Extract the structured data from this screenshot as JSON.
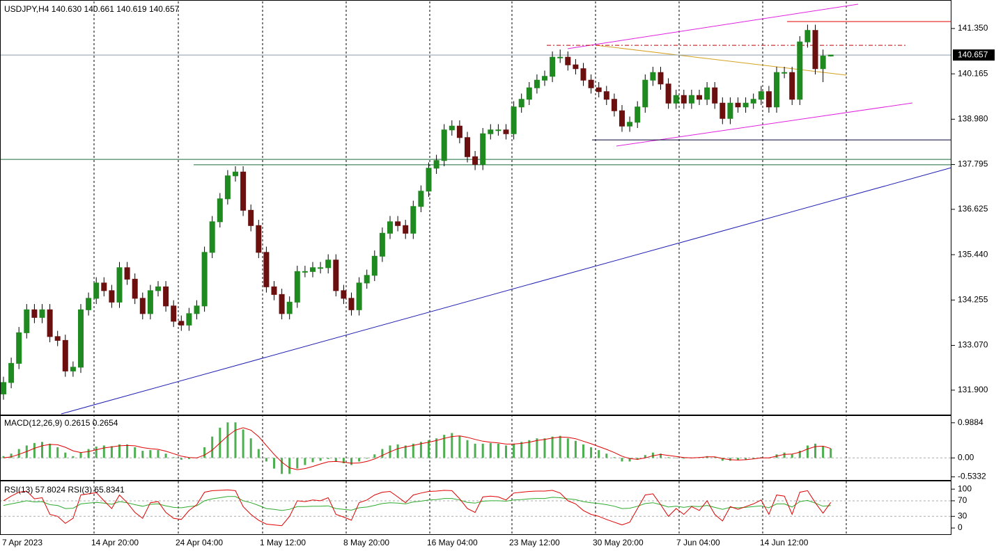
{
  "chart_data": [
    {
      "type": "candlestick",
      "title": "USDJPY,H4  140.630 140.661 140.619 140.657",
      "up_color": "#1f8a1f",
      "down_color": "#6b0f0f",
      "wick_color": "#000000",
      "ylim": [
        131.28,
        142.04
      ],
      "yticks": [
        {
          "value": 131.9,
          "label": "131.900"
        },
        {
          "value": 133.07,
          "label": "133.070"
        },
        {
          "value": 134.255,
          "label": "134.255"
        },
        {
          "value": 135.44,
          "label": "135.440"
        },
        {
          "value": 136.625,
          "label": "136.625"
        },
        {
          "value": 137.795,
          "label": "137.795"
        },
        {
          "value": 138.98,
          "label": "138.980"
        },
        {
          "value": 140.165,
          "label": "140.165"
        },
        {
          "value": 141.35,
          "label": "141.350"
        }
      ],
      "current": {
        "value": 140.657,
        "label": "140.657"
      },
      "levels": [
        {
          "value": 141.53,
          "color": "#e00000",
          "style": "solid"
        },
        {
          "value": 140.91,
          "color": "#c00000",
          "style": "dashdot"
        },
        {
          "value": 138.44,
          "color": "#000033",
          "style": "solid"
        },
        {
          "value": 137.93,
          "color": "#1a6b3a",
          "style": "solid"
        },
        {
          "value": 137.79,
          "color": "#1a6b3a",
          "style": "solid"
        }
      ],
      "open": [
        131.8,
        132.1,
        132.6,
        133.4,
        134.0,
        133.8,
        134.0,
        133.3,
        133.2,
        132.4,
        132.5,
        134.0,
        134.3,
        134.7,
        134.5,
        134.2,
        135.1,
        134.8,
        134.3,
        133.9,
        134.5,
        134.6,
        134.1,
        133.7,
        133.6,
        133.9,
        134.1,
        135.5,
        136.3,
        136.9,
        137.5,
        137.6,
        136.6,
        136.2,
        135.5,
        134.6,
        134.4,
        133.9,
        134.2,
        135.0,
        135.0,
        135.1,
        135.1,
        135.3,
        134.5,
        134.3,
        134.0,
        134.7,
        134.9,
        135.4,
        136.0,
        136.3,
        136.2,
        136.0,
        136.7,
        137.1,
        137.7,
        137.9,
        138.7,
        138.8,
        138.5,
        138.0,
        137.8,
        138.6,
        138.7,
        138.7,
        138.6,
        139.3,
        139.5,
        139.8,
        140.0,
        140.1,
        140.6,
        140.6,
        140.4,
        140.3,
        140.0,
        139.8,
        139.7,
        139.5,
        139.2,
        138.8,
        138.9,
        139.3,
        140.0,
        140.2,
        139.9,
        139.4,
        139.6,
        139.4,
        139.6,
        139.5,
        139.8,
        139.4,
        139.0,
        139.4,
        139.3,
        139.4,
        139.5,
        139.7,
        139.3,
        140.2,
        140.2,
        139.5,
        141.0,
        141.3,
        140.3,
        140.63
      ],
      "high": [
        132.25,
        132.75,
        133.55,
        134.15,
        134.15,
        134.15,
        134.15,
        133.45,
        133.35,
        132.65,
        134.15,
        134.45,
        134.85,
        134.85,
        134.65,
        135.25,
        135.25,
        134.95,
        134.45,
        134.65,
        134.75,
        134.75,
        134.25,
        133.85,
        134.05,
        134.25,
        135.65,
        136.45,
        137.05,
        137.65,
        137.75,
        137.75,
        136.75,
        136.35,
        135.65,
        134.75,
        134.55,
        134.35,
        135.15,
        135.15,
        135.25,
        135.25,
        135.45,
        135.45,
        134.65,
        134.45,
        134.85,
        135.05,
        135.55,
        136.15,
        136.45,
        136.45,
        136.35,
        136.85,
        137.25,
        137.85,
        138.05,
        138.85,
        138.95,
        138.95,
        138.65,
        138.15,
        138.75,
        138.85,
        138.85,
        138.85,
        139.45,
        139.65,
        139.95,
        140.15,
        140.25,
        140.75,
        140.8,
        140.75,
        140.55,
        140.45,
        140.15,
        139.95,
        139.85,
        139.65,
        139.35,
        139.05,
        139.45,
        140.15,
        140.35,
        140.35,
        140.05,
        139.75,
        139.75,
        139.75,
        139.75,
        139.95,
        139.95,
        139.55,
        139.55,
        139.55,
        139.55,
        139.65,
        139.85,
        139.85,
        140.35,
        140.35,
        140.35,
        141.15,
        141.45,
        141.45,
        140.8,
        140.661
      ],
      "low": [
        131.65,
        131.95,
        132.45,
        133.25,
        133.65,
        133.65,
        133.15,
        133.05,
        132.25,
        132.25,
        132.35,
        133.85,
        134.15,
        134.35,
        134.05,
        134.05,
        134.65,
        134.15,
        133.75,
        133.75,
        134.35,
        133.95,
        133.55,
        133.45,
        133.45,
        133.75,
        133.95,
        135.35,
        136.15,
        136.75,
        137.35,
        136.45,
        136.05,
        135.35,
        134.45,
        134.25,
        133.75,
        133.75,
        134.05,
        134.85,
        134.85,
        134.95,
        134.95,
        134.35,
        134.15,
        133.85,
        133.85,
        134.55,
        134.75,
        135.25,
        135.85,
        136.05,
        135.85,
        135.85,
        136.55,
        136.95,
        137.55,
        137.75,
        138.55,
        138.35,
        137.85,
        137.65,
        137.65,
        138.45,
        138.55,
        138.45,
        138.45,
        139.15,
        139.35,
        139.65,
        139.85,
        139.95,
        140.45,
        140.25,
        140.15,
        139.85,
        139.65,
        139.55,
        139.35,
        139.05,
        138.65,
        138.65,
        138.75,
        139.15,
        139.85,
        139.75,
        139.25,
        139.25,
        139.25,
        139.25,
        139.35,
        139.35,
        139.25,
        138.85,
        138.85,
        139.15,
        139.15,
        139.25,
        139.35,
        139.15,
        139.15,
        140.05,
        139.35,
        139.35,
        140.85,
        140.15,
        139.95,
        140.619
      ],
      "close": [
        132.1,
        132.6,
        133.4,
        134.0,
        133.8,
        134.0,
        133.3,
        133.2,
        132.4,
        132.5,
        134.0,
        134.3,
        134.7,
        134.5,
        134.2,
        135.1,
        134.8,
        134.3,
        133.9,
        134.5,
        134.6,
        134.1,
        133.7,
        133.6,
        133.9,
        134.1,
        135.5,
        136.3,
        136.9,
        137.5,
        137.6,
        136.6,
        136.2,
        135.5,
        134.6,
        134.4,
        133.9,
        134.2,
        135.0,
        135.0,
        135.1,
        135.1,
        135.3,
        134.5,
        134.3,
        134.0,
        134.7,
        134.9,
        135.4,
        136.0,
        136.3,
        136.2,
        136.0,
        136.7,
        137.1,
        137.7,
        137.9,
        138.7,
        138.8,
        138.5,
        138.0,
        137.8,
        138.6,
        138.7,
        138.7,
        138.6,
        139.3,
        139.5,
        139.8,
        140.0,
        140.1,
        140.6,
        140.6,
        140.4,
        140.3,
        140.0,
        139.8,
        139.7,
        139.5,
        139.2,
        138.8,
        138.9,
        139.3,
        140.0,
        140.2,
        139.9,
        139.4,
        139.6,
        139.4,
        139.6,
        139.5,
        139.8,
        139.4,
        139.0,
        139.4,
        139.3,
        139.4,
        139.5,
        139.7,
        139.3,
        140.2,
        140.2,
        139.5,
        141.0,
        141.3,
        140.3,
        140.63,
        140.657
      ]
    },
    {
      "type": "macd",
      "title": "MACD(12,26,9) 0.2615 0.2654",
      "color": "#4caf50",
      "signal_color": "#e00000",
      "zero_line": true,
      "ylim": [
        -0.62,
        1.18
      ],
      "yticks": [
        0.9884,
        {
          "value": 0,
          "label": "0.00"
        },
        -0.5332
      ],
      "values": [
        0.05,
        0.12,
        0.25,
        0.35,
        0.42,
        0.45,
        0.4,
        0.3,
        0.15,
        0.05,
        0.15,
        0.25,
        0.32,
        0.35,
        0.33,
        0.38,
        0.38,
        0.3,
        0.2,
        0.22,
        0.22,
        0.12,
        0.02,
        -0.05,
        -0.03,
        0.0,
        0.3,
        0.6,
        0.85,
        1.0,
        1.0,
        0.8,
        0.55,
        0.25,
        -0.1,
        -0.3,
        -0.45,
        -0.45,
        -0.3,
        -0.2,
        -0.12,
        -0.08,
        -0.03,
        -0.1,
        -0.15,
        -0.2,
        -0.1,
        -0.02,
        0.1,
        0.25,
        0.35,
        0.38,
        0.35,
        0.4,
        0.45,
        0.5,
        0.55,
        0.65,
        0.7,
        0.62,
        0.5,
        0.4,
        0.4,
        0.42,
        0.4,
        0.35,
        0.4,
        0.45,
        0.5,
        0.55,
        0.55,
        0.6,
        0.62,
        0.55,
        0.48,
        0.38,
        0.3,
        0.22,
        0.12,
        0.02,
        -0.1,
        -0.1,
        -0.05,
        0.08,
        0.15,
        0.12,
        0.02,
        0.0,
        -0.02,
        0.0,
        0.02,
        0.05,
        0.02,
        -0.08,
        -0.08,
        -0.06,
        -0.05,
        -0.02,
        0.02,
        0.0,
        0.1,
        0.15,
        0.1,
        0.2,
        0.35,
        0.4,
        0.33,
        0.2615
      ],
      "signal": [
        0,
        0.03,
        0.1,
        0.18,
        0.27,
        0.34,
        0.38,
        0.37,
        0.3,
        0.2,
        0.15,
        0.18,
        0.23,
        0.28,
        0.31,
        0.34,
        0.35,
        0.34,
        0.29,
        0.26,
        0.24,
        0.19,
        0.12,
        0.05,
        0.01,
        0.0,
        0.08,
        0.22,
        0.42,
        0.62,
        0.78,
        0.85,
        0.78,
        0.6,
        0.35,
        0.1,
        -0.12,
        -0.28,
        -0.33,
        -0.3,
        -0.24,
        -0.17,
        -0.11,
        -0.1,
        -0.12,
        -0.15,
        -0.14,
        -0.1,
        -0.03,
        0.07,
        0.17,
        0.26,
        0.31,
        0.35,
        0.4,
        0.44,
        0.49,
        0.55,
        0.6,
        0.62,
        0.58,
        0.52,
        0.47,
        0.44,
        0.42,
        0.39,
        0.39,
        0.41,
        0.44,
        0.49,
        0.52,
        0.56,
        0.59,
        0.58,
        0.54,
        0.47,
        0.4,
        0.32,
        0.24,
        0.15,
        0.05,
        -0.02,
        -0.04,
        0.0,
        0.06,
        0.1,
        0.07,
        0.04,
        0.01,
        0.0,
        0.01,
        0.03,
        0.03,
        -0.02,
        -0.05,
        -0.06,
        -0.05,
        -0.03,
        0.0,
        0.0,
        0.05,
        0.1,
        0.11,
        0.16,
        0.25,
        0.32,
        0.33,
        0.2654
      ]
    },
    {
      "type": "line",
      "title": "RSI(13) 57.8024  RSI(3) 65.8341",
      "ylim": [
        -16,
        120
      ],
      "yticks": [
        100,
        70,
        30,
        0
      ],
      "dashed_levels": [
        70,
        30
      ],
      "series": [
        {
          "color": "#2eaa2e",
          "values": [
            58,
            62,
            66,
            70,
            67,
            68,
            60,
            58,
            50,
            51,
            62,
            64,
            66,
            64,
            61,
            68,
            65,
            60,
            56,
            61,
            62,
            57,
            53,
            52,
            55,
            57,
            70,
            75,
            78,
            81,
            81,
            70,
            65,
            58,
            50,
            48,
            45,
            48,
            55,
            55,
            56,
            56,
            57,
            50,
            48,
            46,
            52,
            54,
            58,
            63,
            65,
            64,
            62,
            67,
            69,
            72,
            73,
            76,
            76,
            72,
            66,
            64,
            69,
            70,
            70,
            69,
            72,
            73,
            75,
            76,
            76,
            79,
            78,
            75,
            73,
            68,
            65,
            63,
            60,
            56,
            50,
            51,
            56,
            63,
            65,
            60,
            54,
            56,
            53,
            56,
            55,
            58,
            53,
            48,
            53,
            52,
            53,
            55,
            57,
            52,
            62,
            62,
            54,
            68,
            71,
            64,
            56,
            57.8024
          ]
        },
        {
          "color": "#e00000",
          "values": [
            70,
            82,
            92,
            95,
            75,
            78,
            35,
            30,
            12,
            25,
            85,
            88,
            91,
            70,
            50,
            85,
            65,
            40,
            25,
            65,
            68,
            40,
            25,
            22,
            45,
            60,
            92,
            96,
            97,
            98,
            96,
            55,
            35,
            20,
            10,
            8,
            6,
            30,
            70,
            68,
            72,
            70,
            78,
            35,
            28,
            20,
            65,
            72,
            85,
            92,
            94,
            80,
            65,
            85,
            90,
            94,
            95,
            97,
            96,
            75,
            50,
            40,
            80,
            82,
            80,
            72,
            90,
            92,
            94,
            95,
            95,
            97,
            90,
            70,
            62,
            45,
            35,
            30,
            22,
            15,
            8,
            15,
            50,
            85,
            88,
            60,
            30,
            50,
            35,
            55,
            45,
            70,
            35,
            18,
            55,
            48,
            55,
            62,
            72,
            35,
            85,
            82,
            35,
            92,
            96,
            65,
            38,
            65.8341
          ]
        }
      ],
      "x_labels": [
        "7 Apr 2023",
        "14 Apr 20:00",
        "24 Apr 04:00",
        "1 May 12:00",
        "8 May 20:00",
        "16 May 04:00",
        "23 May 12:00",
        "30 May 20:00",
        "7 Jun 04:00",
        "14 Jun 12:00"
      ]
    }
  ]
}
